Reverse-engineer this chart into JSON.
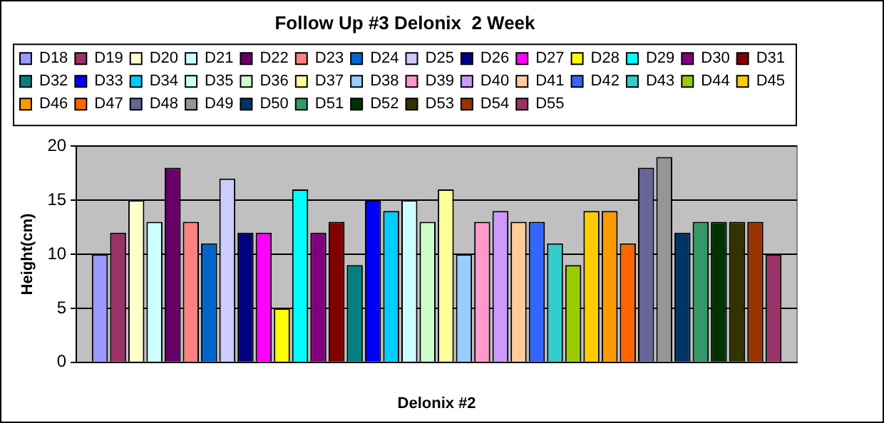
{
  "chart_data": {
    "type": "bar",
    "title": "Follow Up #3 Delonix  2 Week",
    "xlabel": "Delonix #2",
    "ylabel": "Height(cm)",
    "categories": [
      null
    ],
    "ylim": [
      0,
      20
    ],
    "yticks": [
      0,
      5,
      10,
      15,
      20
    ],
    "grid": "y",
    "legend": "top",
    "series": [
      {
        "name": "D18",
        "color": "#9999ff",
        "values": [
          10
        ]
      },
      {
        "name": "D19",
        "color": "#993366",
        "values": [
          12
        ]
      },
      {
        "name": "D20",
        "color": "#ffffcc",
        "values": [
          15
        ]
      },
      {
        "name": "D21",
        "color": "#ccffff",
        "values": [
          13
        ]
      },
      {
        "name": "D22",
        "color": "#660066",
        "values": [
          18
        ]
      },
      {
        "name": "D23",
        "color": "#ff8080",
        "values": [
          13
        ]
      },
      {
        "name": "D24",
        "color": "#0066cc",
        "values": [
          11
        ]
      },
      {
        "name": "D25",
        "color": "#ccccff",
        "values": [
          17
        ]
      },
      {
        "name": "D26",
        "color": "#000080",
        "values": [
          12
        ]
      },
      {
        "name": "D27",
        "color": "#ff00ff",
        "values": [
          12
        ]
      },
      {
        "name": "D28",
        "color": "#ffff00",
        "values": [
          5
        ]
      },
      {
        "name": "D29",
        "color": "#00ffff",
        "values": [
          16
        ]
      },
      {
        "name": "D30",
        "color": "#800080",
        "values": [
          12
        ]
      },
      {
        "name": "D31",
        "color": "#800000",
        "values": [
          13
        ]
      },
      {
        "name": "D32",
        "color": "#008080",
        "values": [
          9
        ]
      },
      {
        "name": "D33",
        "color": "#0000ff",
        "values": [
          15
        ]
      },
      {
        "name": "D34",
        "color": "#00ccff",
        "values": [
          14
        ]
      },
      {
        "name": "D35",
        "color": "#ccffff",
        "values": [
          15
        ]
      },
      {
        "name": "D36",
        "color": "#ccffcc",
        "values": [
          13
        ]
      },
      {
        "name": "D37",
        "color": "#ffff99",
        "values": [
          16
        ]
      },
      {
        "name": "D38",
        "color": "#99ccff",
        "values": [
          10
        ]
      },
      {
        "name": "D39",
        "color": "#ff99cc",
        "values": [
          13
        ]
      },
      {
        "name": "D40",
        "color": "#cc99ff",
        "values": [
          14
        ]
      },
      {
        "name": "D41",
        "color": "#ffcc99",
        "values": [
          13
        ]
      },
      {
        "name": "D42",
        "color": "#3366ff",
        "values": [
          13
        ]
      },
      {
        "name": "D43",
        "color": "#33cccc",
        "values": [
          11
        ]
      },
      {
        "name": "D44",
        "color": "#99cc00",
        "values": [
          9
        ]
      },
      {
        "name": "D45",
        "color": "#ffcc00",
        "values": [
          14
        ]
      },
      {
        "name": "D46",
        "color": "#ff9900",
        "values": [
          14
        ]
      },
      {
        "name": "D47",
        "color": "#ff6600",
        "values": [
          11
        ]
      },
      {
        "name": "D48",
        "color": "#666699",
        "values": [
          18
        ]
      },
      {
        "name": "D49",
        "color": "#969696",
        "values": [
          19
        ]
      },
      {
        "name": "D50",
        "color": "#003366",
        "values": [
          12
        ]
      },
      {
        "name": "D51",
        "color": "#339966",
        "values": [
          13
        ]
      },
      {
        "name": "D52",
        "color": "#003300",
        "values": [
          13
        ]
      },
      {
        "name": "D53",
        "color": "#333300",
        "values": [
          13
        ]
      },
      {
        "name": "D54",
        "color": "#993300",
        "values": [
          13
        ]
      },
      {
        "name": "D55",
        "color": "#993366",
        "values": [
          10
        ]
      }
    ]
  }
}
